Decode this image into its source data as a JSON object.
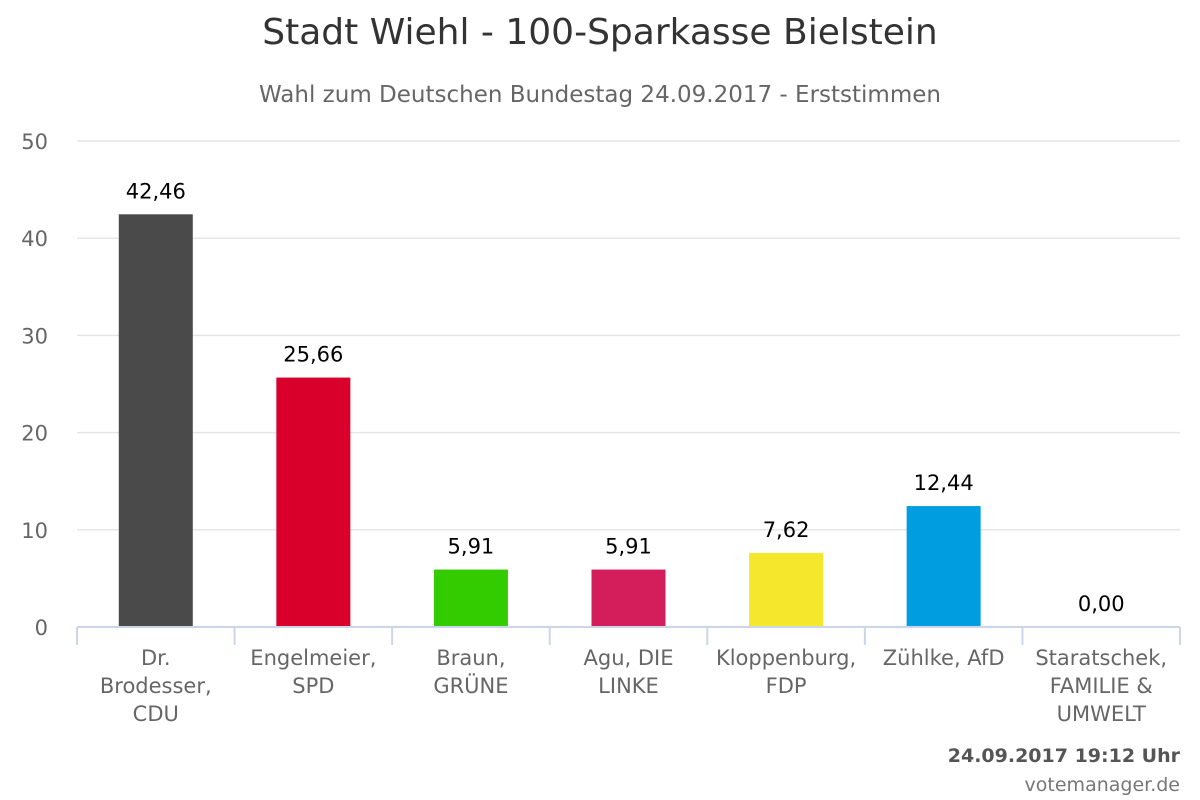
{
  "title": "Stadt Wiehl - 100-Sparkasse Bielstein",
  "subtitle": "Wahl zum Deutschen Bundestag 24.09.2017 - Erststimmen",
  "timestamp": "24.09.2017 19:12 Uhr",
  "credit": "votemanager.de",
  "chart_data": {
    "type": "bar",
    "title": "Stadt Wiehl - 100-Sparkasse Bielstein",
    "subtitle": "Wahl zum Deutschen Bundestag 24.09.2017 - Erststimmen",
    "categories": [
      [
        "Dr.",
        "Brodesser,",
        "CDU"
      ],
      [
        "Engelmeier,",
        "SPD"
      ],
      [
        "Braun,",
        "GRÜNE"
      ],
      [
        "Agu, DIE",
        "LINKE"
      ],
      [
        "Kloppenburg,",
        "FDP"
      ],
      [
        "Zühlke, AfD"
      ],
      [
        "Staratschek,",
        "FAMILIE &",
        "UMWELT"
      ]
    ],
    "values": [
      42.46,
      25.66,
      5.91,
      5.91,
      7.62,
      12.44,
      0.0
    ],
    "data_labels": [
      "42,46",
      "25,66",
      "5,91",
      "5,91",
      "7,62",
      "12,44",
      "0,00"
    ],
    "colors": [
      "#4a4a4a",
      "#d9002b",
      "#33cc00",
      "#d41e5c",
      "#f5e72c",
      "#009ee0",
      "#9e9e9e"
    ],
    "ylim": [
      0,
      50
    ],
    "yticks": [
      0,
      10,
      20,
      30,
      40,
      50
    ],
    "grid": true,
    "legend": "none"
  }
}
